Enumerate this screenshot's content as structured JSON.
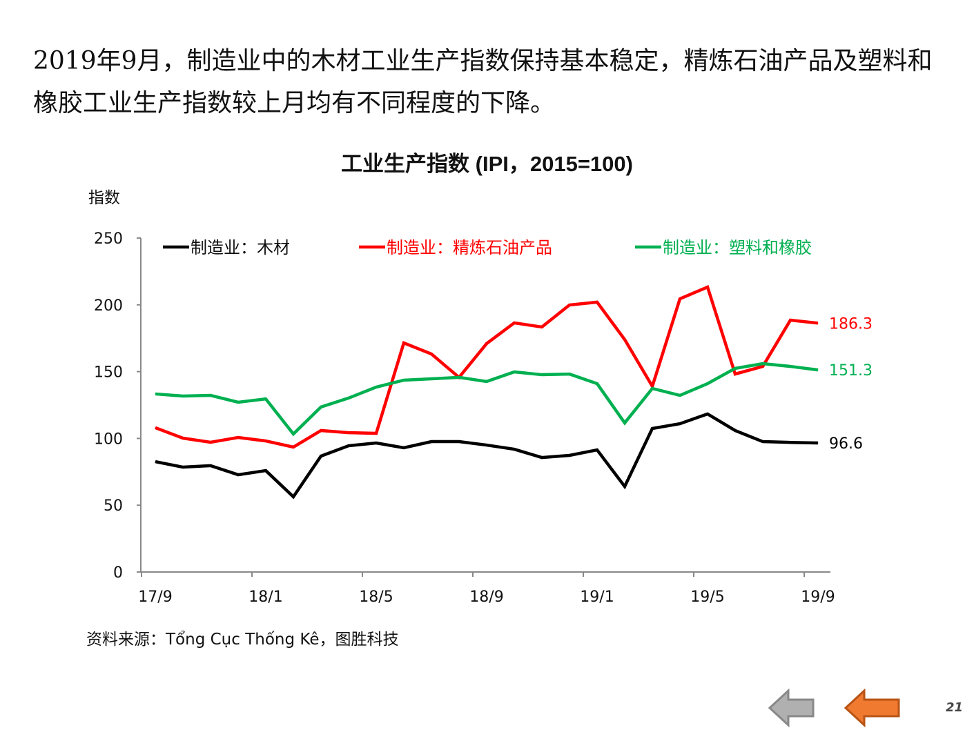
{
  "intro_text": "2019年9月，制造业中的木材工业生产指数保持基本稳定，精炼石油产品及塑料和橡胶工业生产指数较上月均有不同程度的下降。",
  "page_number": "21",
  "navigation": {
    "back_icon": "left-arrow-gray",
    "prev_icon": "left-arrow-orange"
  },
  "chart_data": {
    "type": "line",
    "title": "工业生产指数 (IPI，2015=100)",
    "ylabel": "指数",
    "xlabel": "",
    "ylim": [
      0,
      250
    ],
    "yticks": [
      0,
      50,
      100,
      150,
      200,
      250
    ],
    "x": [
      "17/9",
      "17/10",
      "17/11",
      "17/12",
      "18/1",
      "18/2",
      "18/3",
      "18/4",
      "18/5",
      "18/6",
      "18/7",
      "18/8",
      "18/9",
      "18/10",
      "18/11",
      "18/12",
      "19/1",
      "19/2",
      "19/3",
      "19/4",
      "19/5",
      "19/6",
      "19/7",
      "19/8",
      "19/9"
    ],
    "xtick_labels": [
      "17/9",
      "18/1",
      "18/5",
      "18/9",
      "19/1",
      "19/5",
      "19/9"
    ],
    "legend_position": "top",
    "grid": false,
    "series": [
      {
        "name": "制造业：木材",
        "color": "#000000",
        "end_label": "96.6",
        "values": [
          82.6,
          78.5,
          79.6,
          72.8,
          75.9,
          56.3,
          86.8,
          94.5,
          96.6,
          93.0,
          97.6,
          97.6,
          95.0,
          91.9,
          85.7,
          87.3,
          91.4,
          64.0,
          107.4,
          111.0,
          118.3,
          105.9,
          97.6,
          97.0,
          96.6
        ]
      },
      {
        "name": "制造业：精炼石油产品",
        "color": "#ff0000",
        "end_label": "186.3",
        "values": [
          108.0,
          100.2,
          97.1,
          100.7,
          98.1,
          93.5,
          105.9,
          104.3,
          103.8,
          171.5,
          163.2,
          145.7,
          171.0,
          186.5,
          183.4,
          199.9,
          202.0,
          174.0,
          139.0,
          204.5,
          213.3,
          148.2,
          153.9,
          188.5,
          186.3
        ]
      },
      {
        "name": "制造业：塑料和橡胶",
        "color": "#00b050",
        "end_label": "151.3",
        "values": [
          133.3,
          131.7,
          132.2,
          127.1,
          129.6,
          103.3,
          123.5,
          130.2,
          138.4,
          143.6,
          144.6,
          145.7,
          142.6,
          149.8,
          147.7,
          148.2,
          141.0,
          111.6,
          137.4,
          132.2,
          141.0,
          152.4,
          156.0,
          153.9,
          151.3
        ]
      }
    ],
    "source": "资料来源：Tổng Cục Thống Kê，图胜科技"
  }
}
